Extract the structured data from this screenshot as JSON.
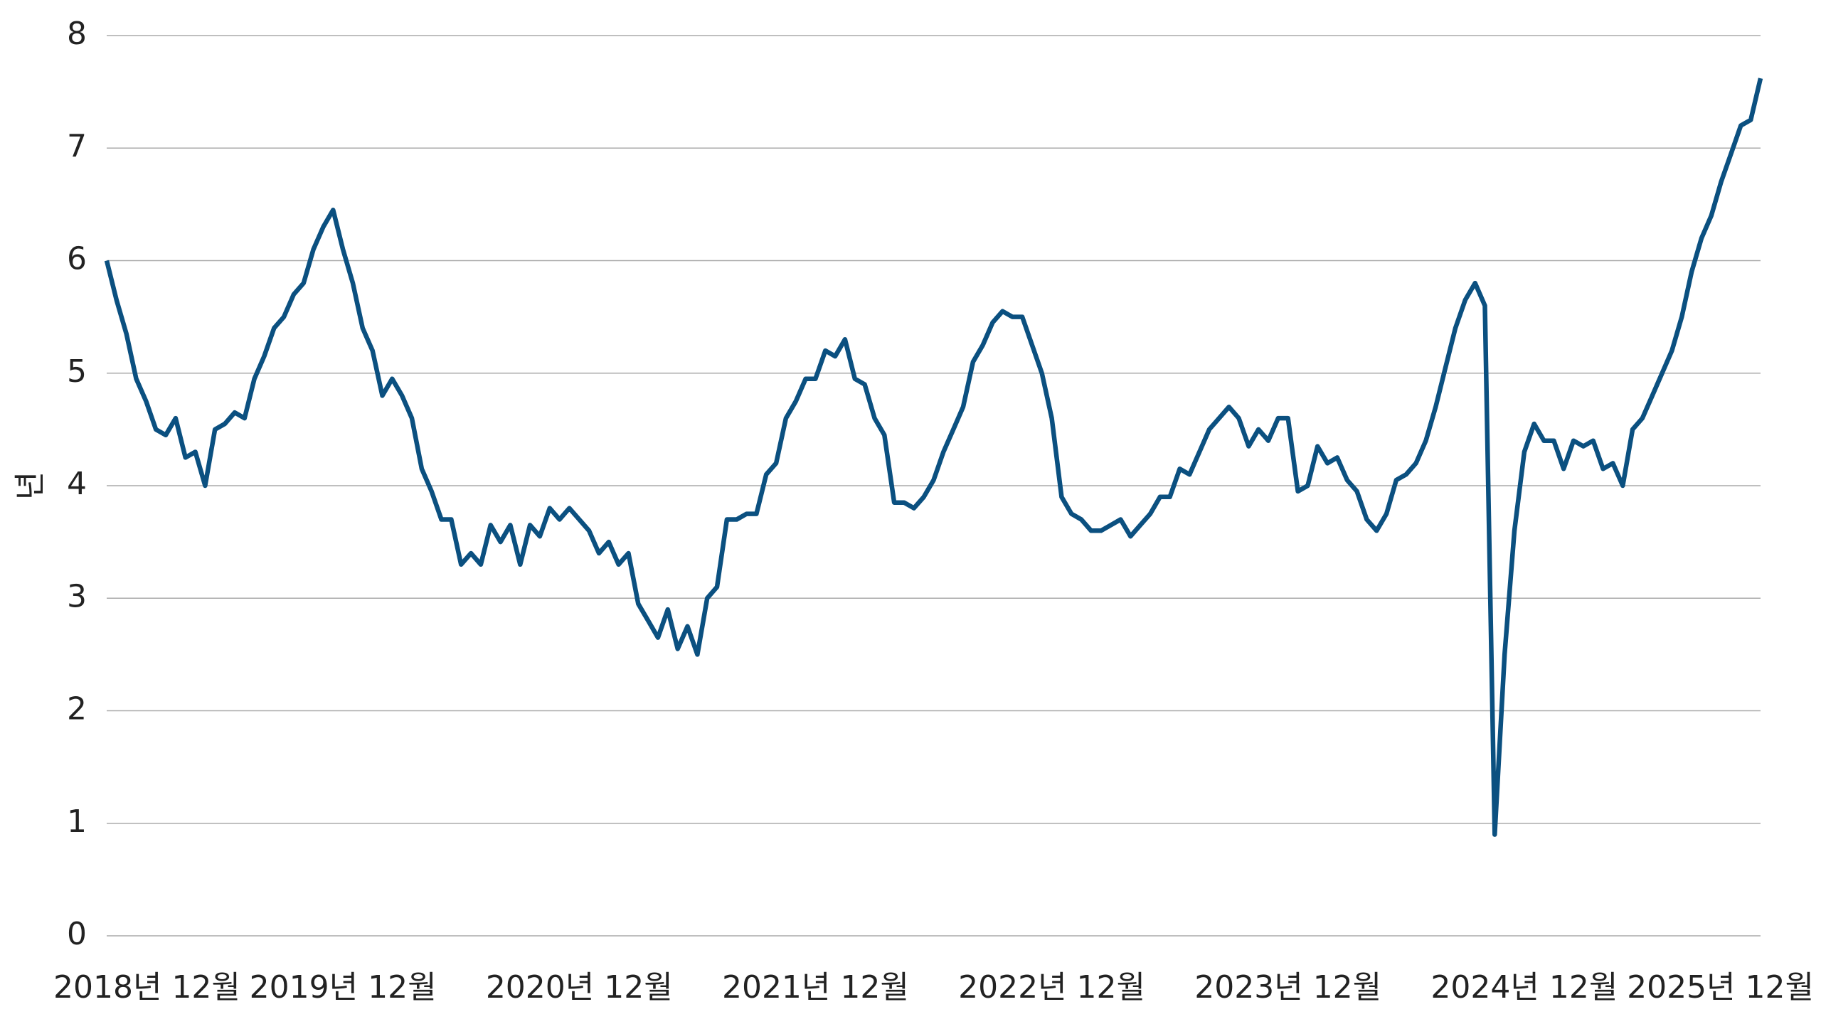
{
  "chart_data": {
    "type": "line",
    "y_label": "년",
    "categories": [
      "2018년 12월",
      null,
      null,
      null,
      null,
      null,
      null,
      null,
      null,
      null,
      null,
      null,
      null,
      null,
      null,
      null,
      null,
      null,
      null,
      null,
      null,
      null,
      null,
      null,
      "2019년 12월",
      null,
      null,
      null,
      null,
      null,
      null,
      null,
      null,
      null,
      null,
      null,
      null,
      null,
      null,
      null,
      null,
      null,
      null,
      null,
      null,
      null,
      null,
      null,
      "2020년 12월",
      null,
      null,
      null,
      null,
      null,
      null,
      null,
      null,
      null,
      null,
      null,
      null,
      null,
      null,
      null,
      null,
      null,
      null,
      null,
      null,
      null,
      null,
      null,
      "2021년 12월",
      null,
      null,
      null,
      null,
      null,
      null,
      null,
      null,
      null,
      null,
      null,
      null,
      null,
      null,
      null,
      null,
      null,
      null,
      null,
      null,
      null,
      null,
      null,
      "2022년 12월",
      null,
      null,
      null,
      null,
      null,
      null,
      null,
      null,
      null,
      null,
      null,
      null,
      null,
      null,
      null,
      null,
      null,
      null,
      null,
      null,
      null,
      null,
      null,
      "2023년 12월",
      null,
      null,
      null,
      null,
      null,
      null,
      null,
      null,
      null,
      null,
      null,
      null,
      null,
      null,
      null,
      null,
      null,
      null,
      null,
      null,
      null,
      null,
      null,
      "2024년 12월",
      null,
      null,
      null,
      null,
      null,
      null,
      null,
      null,
      null,
      null,
      null,
      null,
      null,
      null,
      null,
      null,
      null,
      null,
      null,
      null,
      null,
      null,
      null,
      "2025년 12월"
    ],
    "series": [
      {
        "color": "#0b5080",
        "values": [
          6.0,
          5.65,
          5.35,
          4.95,
          4.75,
          4.5,
          4.45,
          4.6,
          4.25,
          4.3,
          4.0,
          4.5,
          4.55,
          4.65,
          4.6,
          4.95,
          5.15,
          5.4,
          5.5,
          5.7,
          5.8,
          6.1,
          6.3,
          6.45,
          6.1,
          5.8,
          5.4,
          5.2,
          4.8,
          4.95,
          4.8,
          4.6,
          4.15,
          3.95,
          3.7,
          3.7,
          3.3,
          3.4,
          3.3,
          3.65,
          3.5,
          3.65,
          3.3,
          3.65,
          3.55,
          3.8,
          3.7,
          3.8,
          3.7,
          3.6,
          3.4,
          3.5,
          3.3,
          3.4,
          2.95,
          2.8,
          2.65,
          2.9,
          2.55,
          2.75,
          2.5,
          3.0,
          3.1,
          3.7,
          3.7,
          3.75,
          3.75,
          4.1,
          4.2,
          4.6,
          4.75,
          4.95,
          4.95,
          5.2,
          5.15,
          5.3,
          4.95,
          4.9,
          4.6,
          4.45,
          3.85,
          3.85,
          3.8,
          3.9,
          4.05,
          4.3,
          4.5,
          4.7,
          5.1,
          5.25,
          5.45,
          5.55,
          5.5,
          5.5,
          5.25,
          5.0,
          4.6,
          3.9,
          3.75,
          3.7,
          3.6,
          3.6,
          3.65,
          3.7,
          3.55,
          3.65,
          3.75,
          3.9,
          3.9,
          4.15,
          4.1,
          4.3,
          4.5,
          4.6,
          4.7,
          4.6,
          4.35,
          4.5,
          4.4,
          4.6,
          4.6,
          3.95,
          4.0,
          4.35,
          4.2,
          4.25,
          4.05,
          3.95,
          3.7,
          3.6,
          3.75,
          4.05,
          4.1,
          4.2,
          4.4,
          4.7,
          5.05,
          5.4,
          5.65,
          5.8,
          5.6,
          0.9,
          2.5,
          3.6,
          4.3,
          4.55,
          4.4,
          4.4,
          4.15,
          4.4,
          4.35,
          4.4,
          4.15,
          4.2,
          4.0,
          4.5,
          4.6,
          4.8,
          5.0,
          5.2,
          5.5,
          5.9,
          6.2,
          6.4,
          6.7,
          6.95,
          7.2,
          7.25,
          7.62
        ]
      }
    ],
    "ylim": [
      0,
      8
    ],
    "yticks": [
      0,
      1,
      2,
      3,
      4,
      5,
      6,
      7,
      8
    ],
    "grid": true
  }
}
